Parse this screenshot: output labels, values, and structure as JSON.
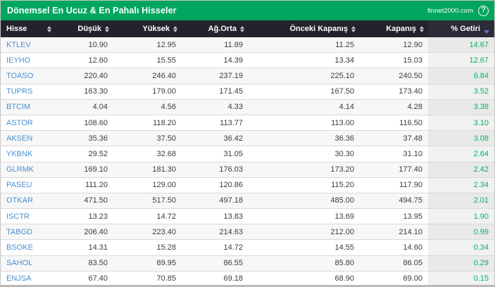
{
  "title": "Dönemsel En Ucuz & En Pahalı Hisseler",
  "brand": "finnet2000.com",
  "help_icon": "?",
  "colors": {
    "titlebar_green": "#00a65e",
    "header_dark": "#23232d",
    "sorted_header_dark": "#2c2c38",
    "symbol_blue": "#4a8fd1",
    "positive_green": "#00b45c",
    "sorted_arrow_purple": "#6b6bd6",
    "row_alt_gray": "#f7f7f7"
  },
  "columns": [
    {
      "label": "Hisse",
      "sortable": true,
      "align": "left"
    },
    {
      "label": "Düşük",
      "sortable": true,
      "align": "right"
    },
    {
      "label": "Yüksek",
      "sortable": true,
      "align": "right"
    },
    {
      "label": "Ağ.Orta",
      "sortable": true,
      "align": "right"
    },
    {
      "label": "Önceki Kapanış",
      "sortable": true,
      "align": "right"
    },
    {
      "label": "Kapanış",
      "sortable": true,
      "align": "right"
    },
    {
      "label": "% Getiri",
      "sortable": true,
      "align": "right",
      "sorted": "desc"
    }
  ],
  "rows": [
    [
      "KTLEV",
      "10.90",
      "12.95",
      "11.89",
      "11.25",
      "12.90",
      "14.67"
    ],
    [
      "IEYHO",
      "12.60",
      "15.55",
      "14.39",
      "13.34",
      "15.03",
      "12.67"
    ],
    [
      "TOASO",
      "220.40",
      "246.40",
      "237.19",
      "225.10",
      "240.50",
      "6.84"
    ],
    [
      "TUPRS",
      "163.30",
      "179.00",
      "171.45",
      "167.50",
      "173.40",
      "3.52"
    ],
    [
      "BTCIM",
      "4.04",
      "4.56",
      "4.33",
      "4.14",
      "4.28",
      "3.38"
    ],
    [
      "ASTOR",
      "108.60",
      "118.20",
      "113.77",
      "113.00",
      "116.50",
      "3.10"
    ],
    [
      "AKSEN",
      "35.36",
      "37.50",
      "36.42",
      "36.36",
      "37.48",
      "3.08"
    ],
    [
      "YKBNK",
      "29.52",
      "32.68",
      "31.05",
      "30.30",
      "31.10",
      "2.64"
    ],
    [
      "GLRMK",
      "169.10",
      "181.30",
      "176.03",
      "173.20",
      "177.40",
      "2.42"
    ],
    [
      "PASEU",
      "111.20",
      "129.00",
      "120.86",
      "115.20",
      "117.90",
      "2.34"
    ],
    [
      "OTKAR",
      "471.50",
      "517.50",
      "497.18",
      "485.00",
      "494.75",
      "2.01"
    ],
    [
      "ISCTR",
      "13.23",
      "14.72",
      "13.83",
      "13.69",
      "13.95",
      "1.90"
    ],
    [
      "TABGD",
      "206.40",
      "223.40",
      "214.63",
      "212.00",
      "214.10",
      "0.99"
    ],
    [
      "BSOKE",
      "14.31",
      "15.28",
      "14.72",
      "14.55",
      "14.60",
      "0.34"
    ],
    [
      "SAHOL",
      "83.50",
      "89.95",
      "86.55",
      "85.80",
      "86.05",
      "0.29"
    ],
    [
      "ENJSA",
      "67.40",
      "70.85",
      "69.18",
      "68.90",
      "69.00",
      "0.15"
    ]
  ]
}
